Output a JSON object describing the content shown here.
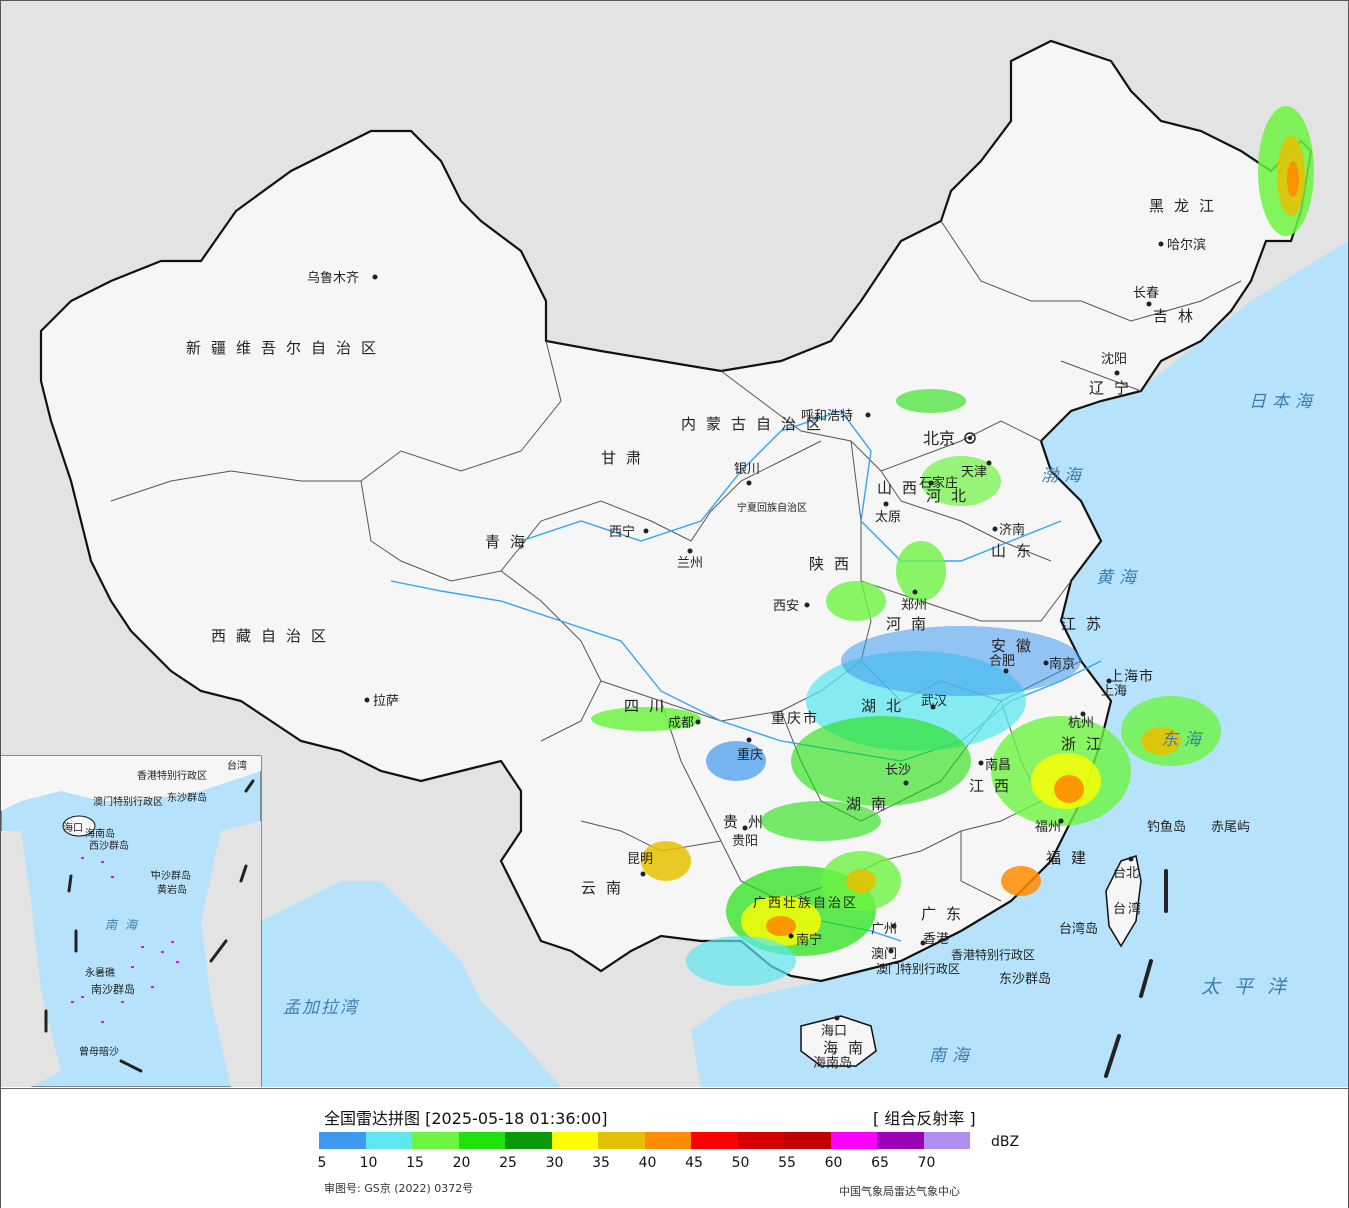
{
  "legend": {
    "title": "全国雷达拼图 [2025-05-18 01:36:00]",
    "product": "[ 组合反射率 ]",
    "unit": "dBZ",
    "ticks": [
      "5",
      "10",
      "15",
      "20",
      "25",
      "30",
      "35",
      "40",
      "45",
      "50",
      "55",
      "60",
      "65",
      "70"
    ],
    "colors": [
      "#3e99f0",
      "#5ee7ee",
      "#6df442",
      "#20e00e",
      "#0a9a08",
      "#ffff00",
      "#e6c100",
      "#ff8c00",
      "#ff0000",
      "#d60000",
      "#c00000",
      "#ff00ff",
      "#9a00b4",
      "#b08ff0"
    ],
    "approval": "审图号: GS京 (2022) 0372号",
    "credit": "中国气象局雷达气象中心"
  },
  "map": {
    "colors": {
      "land": "#f6f6f6",
      "sea": "#b6e3fb",
      "foreign": "#e3e3e3",
      "border": "#111111",
      "river": "#33a6f0"
    },
    "provinces": [
      {
        "id": "xinjiang",
        "label": "新疆维吾尔自治区"
      },
      {
        "id": "xizang",
        "label": "西藏自治区"
      },
      {
        "id": "qinghai",
        "label": "青海"
      },
      {
        "id": "gansu",
        "label": "甘肃"
      },
      {
        "id": "neimenggu",
        "label": "内蒙古自治区"
      },
      {
        "id": "heilongjiang",
        "label": "黑龙江"
      },
      {
        "id": "jilin",
        "label": "吉林"
      },
      {
        "id": "liaoning",
        "label": "辽宁"
      },
      {
        "id": "hebei",
        "label": "河北"
      },
      {
        "id": "shanxi",
        "label": "山西"
      },
      {
        "id": "shandong",
        "label": "山东"
      },
      {
        "id": "henan",
        "label": "河南"
      },
      {
        "id": "shaanxi",
        "label": "陕西"
      },
      {
        "id": "sichuan",
        "label": "四川"
      },
      {
        "id": "hubei",
        "label": "湖北"
      },
      {
        "id": "anhui",
        "label": "安徽"
      },
      {
        "id": "jiangsu",
        "label": "江苏"
      },
      {
        "id": "zhejiang",
        "label": "浙江"
      },
      {
        "id": "jiangxi",
        "label": "江西"
      },
      {
        "id": "hunan",
        "label": "湖南"
      },
      {
        "id": "guizhou",
        "label": "贵州"
      },
      {
        "id": "yunnan",
        "label": "云南"
      },
      {
        "id": "guangxi",
        "label": "广西壮族自治区"
      },
      {
        "id": "guangdong",
        "label": "广东"
      },
      {
        "id": "fujian",
        "label": "福建"
      },
      {
        "id": "hainan",
        "label": "海南"
      },
      {
        "id": "taiwan",
        "label": "台湾"
      },
      {
        "id": "chongqing",
        "label": "重庆市"
      },
      {
        "id": "shanghai",
        "label": "上海市"
      },
      {
        "id": "ningxia",
        "label": "宁夏回族自治区"
      },
      {
        "id": "hongkong",
        "label": "香港特别行政区"
      },
      {
        "id": "macau",
        "label": "澳门特别行政区"
      }
    ],
    "cities": [
      "乌鲁木齐",
      "拉萨",
      "西宁",
      "兰州",
      "银川",
      "呼和浩特",
      "北京",
      "天津",
      "石家庄",
      "太原",
      "济南",
      "郑州",
      "西安",
      "成都",
      "重庆",
      "武汉",
      "合肥",
      "南京",
      "上海",
      "杭州",
      "南昌",
      "长沙",
      "贵阳",
      "昆明",
      "南宁",
      "广州",
      "香港",
      "澳门",
      "福州",
      "台北",
      "哈尔滨",
      "长春",
      "沈阳",
      "海口"
    ],
    "seas": [
      "渤海",
      "黄海",
      "东海",
      "南海",
      "日本海",
      "太平洋",
      "孟加拉湾"
    ],
    "islands": [
      "钓鱼岛",
      "赤尾屿",
      "东沙群岛",
      "台湾岛",
      "海南岛"
    ],
    "inset": {
      "labels": [
        "南海",
        "海口",
        "海南岛",
        "西沙群岛",
        "中沙群岛",
        "黄岩岛",
        "永暑礁",
        "南沙群岛",
        "曾母暗沙",
        "东沙群岛",
        "香港特别行政区",
        "澳门特别行政区",
        "台湾"
      ]
    }
  }
}
